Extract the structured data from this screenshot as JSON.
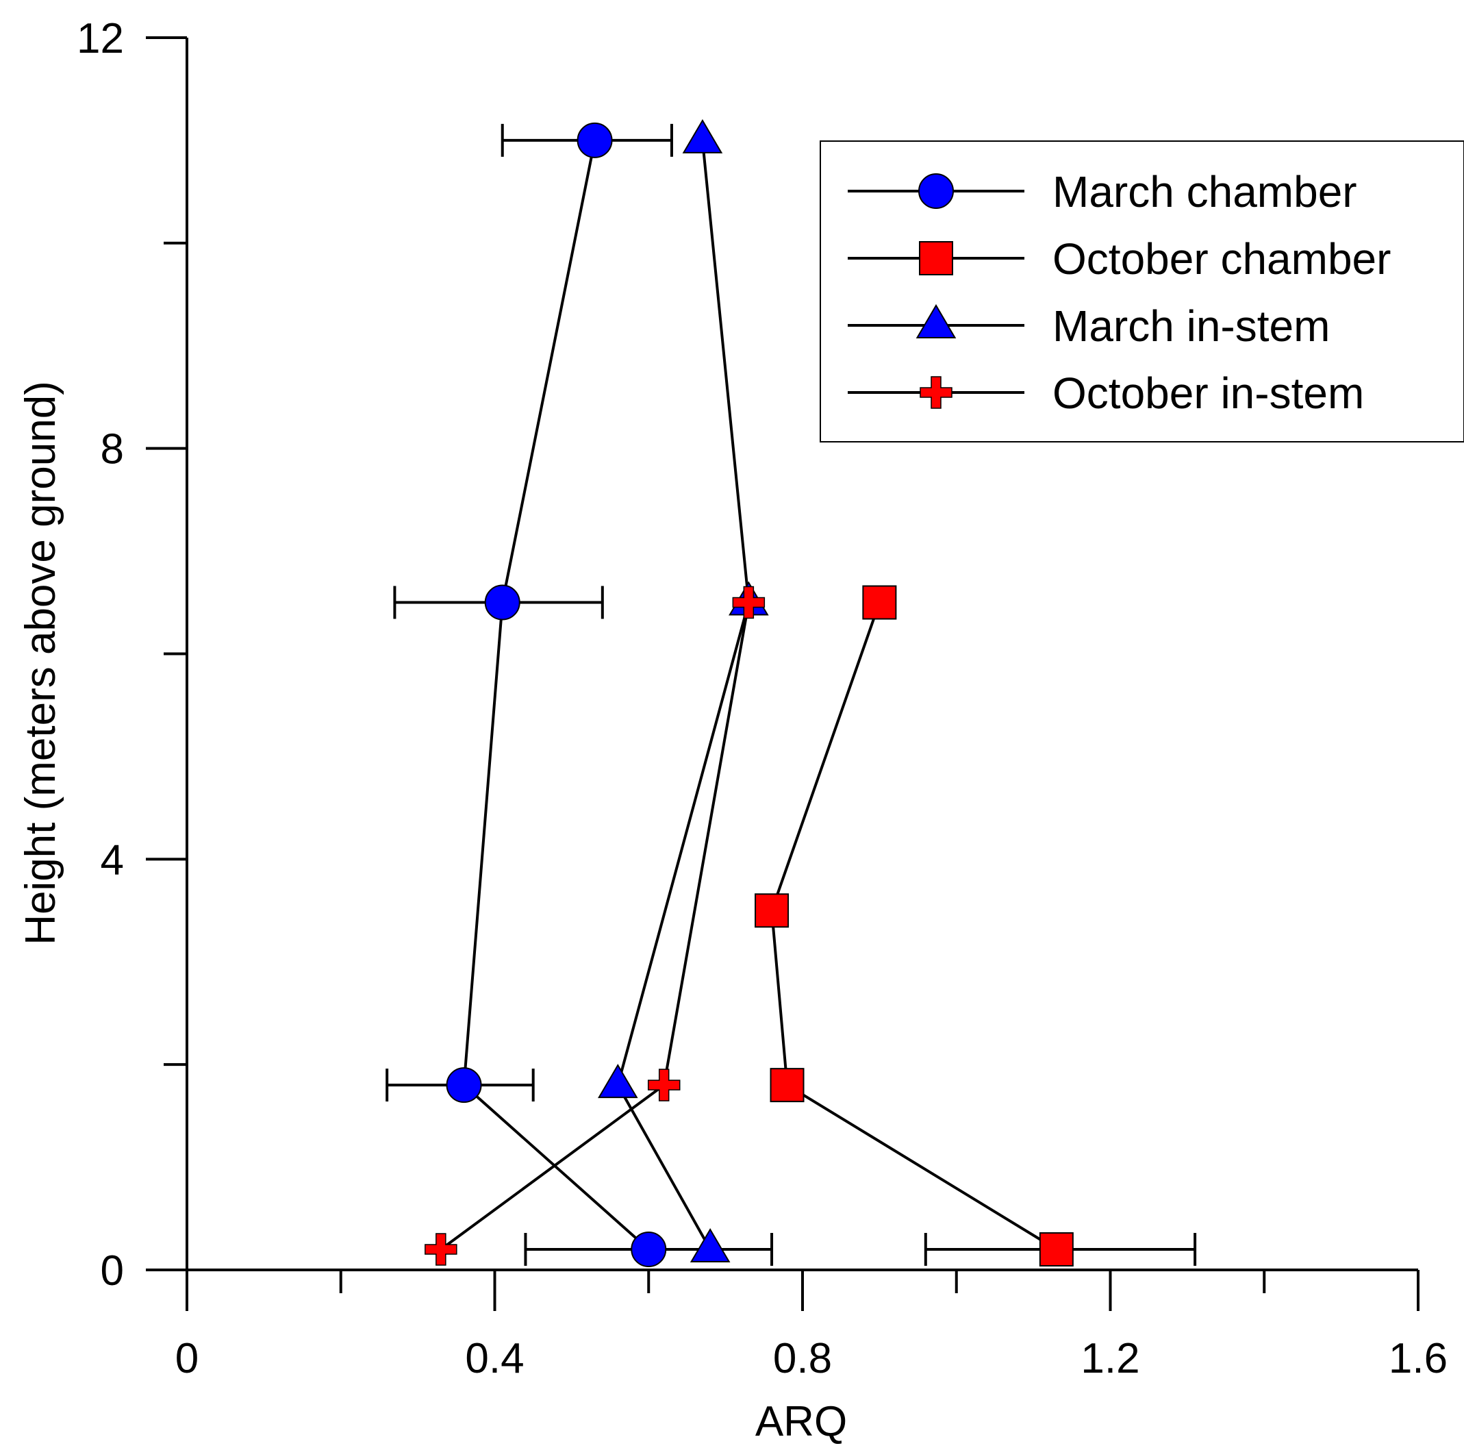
{
  "chart_data": {
    "type": "scatter",
    "xlabel": "ARQ",
    "ylabel": "Height (meters above ground)",
    "xlim": [
      0,
      1.6
    ],
    "ylim": [
      0,
      12
    ],
    "x_ticks": [
      "0",
      "0.4",
      "0.8",
      "1.2",
      "1.6"
    ],
    "x_tick_values": [
      0,
      0.4,
      0.8,
      1.2,
      1.6
    ],
    "x_minor_ticks": [
      0.2,
      0.6,
      1.0,
      1.4
    ],
    "y_ticks": [
      "0",
      "4",
      "8",
      "12"
    ],
    "y_tick_values": [
      0,
      4,
      8,
      12
    ],
    "y_minor_ticks": [
      2,
      6,
      10
    ],
    "grid": false,
    "legend_position": "top-right",
    "series": [
      {
        "name": "March chamber",
        "marker": "circle",
        "color": "#0000FF",
        "points": [
          {
            "x": 0.53,
            "y": 11.0,
            "xerr": [
              0.41,
              0.63
            ]
          },
          {
            "x": 0.41,
            "y": 6.5,
            "xerr": [
              0.27,
              0.54
            ]
          },
          {
            "x": 0.36,
            "y": 1.8,
            "xerr": [
              0.26,
              0.45
            ]
          },
          {
            "x": 0.6,
            "y": 0.2
          }
        ]
      },
      {
        "name": "October chamber",
        "marker": "square",
        "color": "#FF0000",
        "points": [
          {
            "x": 0.9,
            "y": 6.5
          },
          {
            "x": 0.76,
            "y": 3.5
          },
          {
            "x": 0.78,
            "y": 1.8
          },
          {
            "x": 1.13,
            "y": 0.2,
            "xerr": [
              0.96,
              1.31
            ]
          }
        ]
      },
      {
        "name": "March in-stem",
        "marker": "triangle",
        "color": "#0000FF",
        "points": [
          {
            "x": 0.67,
            "y": 11.0
          },
          {
            "x": 0.73,
            "y": 6.5
          },
          {
            "x": 0.56,
            "y": 1.8
          },
          {
            "x": 0.68,
            "y": 0.2,
            "xerr": [
              0.44,
              0.76
            ]
          }
        ]
      },
      {
        "name": "October in-stem",
        "marker": "cross",
        "color": "#FF0000",
        "points": [
          {
            "x": 0.73,
            "y": 6.5
          },
          {
            "x": 0.62,
            "y": 1.8
          },
          {
            "x": 0.33,
            "y": 0.2
          }
        ]
      }
    ]
  }
}
